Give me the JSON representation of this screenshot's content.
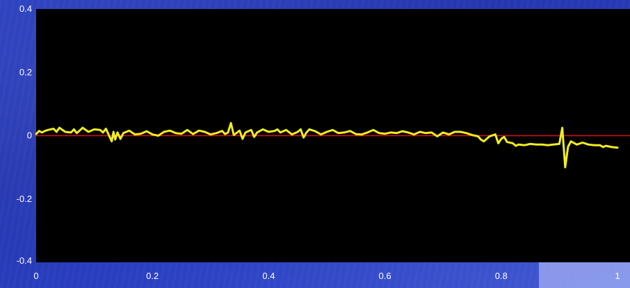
{
  "chart_data": {
    "type": "line",
    "title": "",
    "xlabel": "",
    "ylabel": "",
    "xlim": [
      0,
      1
    ],
    "ylim": [
      -0.4,
      0.4
    ],
    "x_ticks": [
      "0",
      "0.2",
      "0.4",
      "0.6",
      "0.8",
      "1"
    ],
    "y_ticks": [
      "0.4",
      "0.2",
      "0",
      "-0.2",
      "-0.4"
    ],
    "reference_line": {
      "y": 0,
      "color": "#e01010"
    },
    "plot_background": "#000000",
    "grid": false,
    "series": [
      {
        "color": "#f2ee22",
        "x": [
          0,
          0.005,
          0.01,
          0.015,
          0.02,
          0.03,
          0.035,
          0.04,
          0.05,
          0.06,
          0.065,
          0.07,
          0.08,
          0.09,
          0.1,
          0.11,
          0.115,
          0.12,
          0.125,
          0.13,
          0.133,
          0.136,
          0.14,
          0.145,
          0.15,
          0.16,
          0.17,
          0.18,
          0.19,
          0.2,
          0.21,
          0.22,
          0.23,
          0.24,
          0.25,
          0.26,
          0.27,
          0.28,
          0.29,
          0.3,
          0.31,
          0.32,
          0.325,
          0.33,
          0.335,
          0.34,
          0.35,
          0.355,
          0.36,
          0.37,
          0.375,
          0.38,
          0.39,
          0.4,
          0.41,
          0.415,
          0.42,
          0.43,
          0.44,
          0.45,
          0.455,
          0.46,
          0.465,
          0.47,
          0.48,
          0.49,
          0.5,
          0.51,
          0.52,
          0.53,
          0.54,
          0.55,
          0.56,
          0.57,
          0.58,
          0.59,
          0.6,
          0.61,
          0.62,
          0.63,
          0.64,
          0.65,
          0.66,
          0.67,
          0.68,
          0.69,
          0.7,
          0.71,
          0.72,
          0.73,
          0.74,
          0.75,
          0.76,
          0.765,
          0.77,
          0.775,
          0.78,
          0.79,
          0.795,
          0.8,
          0.805,
          0.81,
          0.82,
          0.825,
          0.83,
          0.84,
          0.85,
          0.86,
          0.87,
          0.88,
          0.89,
          0.9,
          0.905,
          0.91,
          0.915,
          0.92,
          0.93,
          0.94,
          0.95,
          0.96,
          0.97,
          0.975,
          0.98,
          0.985,
          0.99,
          1.0
        ],
        "y": [
          0.005,
          0.015,
          0.01,
          0.015,
          0.018,
          0.022,
          0.012,
          0.025,
          0.012,
          0.01,
          0.02,
          0.008,
          0.025,
          0.012,
          0.02,
          0.018,
          0.01,
          0.022,
          0.002,
          -0.018,
          0.012,
          -0.012,
          0.01,
          -0.01,
          0.008,
          0.016,
          0.004,
          0.006,
          0.014,
          0.004,
          0.0,
          0.012,
          0.016,
          0.008,
          0.006,
          0.018,
          0.005,
          0.016,
          0.012,
          0.004,
          0.008,
          0.015,
          0.005,
          0.01,
          0.04,
          0.002,
          0.016,
          -0.01,
          0.01,
          0.018,
          -0.004,
          0.01,
          0.02,
          0.012,
          0.015,
          0.02,
          0.01,
          0.018,
          0.004,
          0.012,
          0.02,
          -0.006,
          0.01,
          0.02,
          0.014,
          0.004,
          0.012,
          0.018,
          0.008,
          0.01,
          0.015,
          0.005,
          0.004,
          0.01,
          0.018,
          0.008,
          0.006,
          0.01,
          0.008,
          0.014,
          0.01,
          0.004,
          0.012,
          0.008,
          0.01,
          -0.002,
          0.01,
          0.004,
          0.012,
          0.012,
          0.008,
          0.002,
          -0.002,
          -0.012,
          -0.018,
          -0.01,
          -0.002,
          0.004,
          -0.024,
          -0.01,
          -0.004,
          -0.02,
          -0.024,
          -0.032,
          -0.028,
          -0.03,
          -0.026,
          -0.028,
          -0.028,
          -0.03,
          -0.028,
          -0.026,
          0.025,
          -0.1,
          -0.035,
          -0.018,
          -0.028,
          -0.022,
          -0.028,
          -0.03,
          -0.03,
          -0.036,
          -0.032,
          -0.034,
          -0.036,
          -0.038
        ]
      }
    ]
  }
}
